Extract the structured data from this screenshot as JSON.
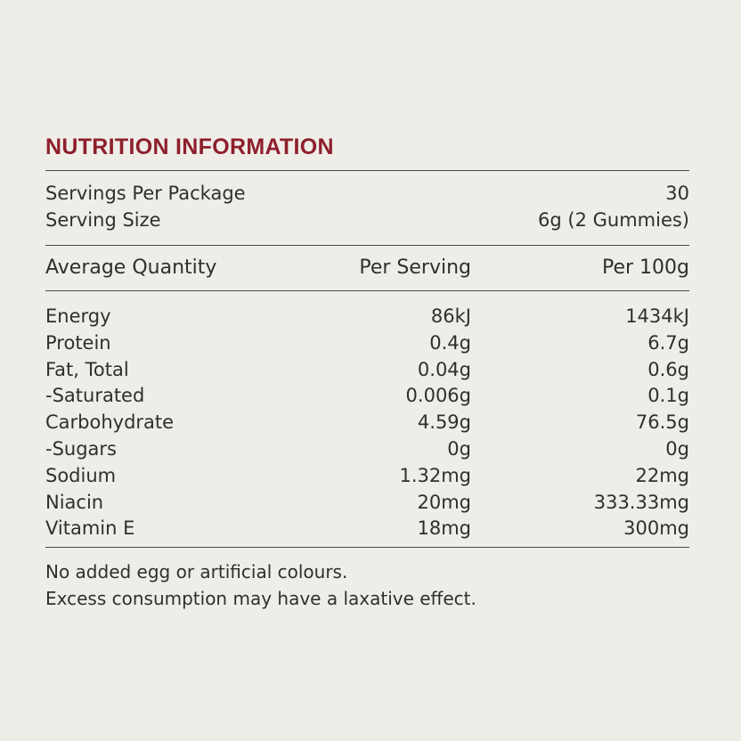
{
  "title": "NUTRITION INFORMATION",
  "servings": {
    "per_package_label": "Servings Per Package",
    "per_package_value": "30",
    "size_label": "Serving Size",
    "size_value": "6g (2 Gummies)"
  },
  "table": {
    "headers": [
      "Average Quantity",
      "Per Serving",
      "Per 100g"
    ],
    "rows": [
      [
        "Energy",
        "86kJ",
        "1434kJ"
      ],
      [
        "Protein",
        "0.4g",
        "6.7g"
      ],
      [
        "Fat, Total",
        "0.04g",
        "0.6g"
      ],
      [
        "-Saturated",
        "0.006g",
        "0.1g"
      ],
      [
        "Carbohydrate",
        "4.59g",
        "76.5g"
      ],
      [
        "-Sugars",
        "0g",
        "0g"
      ],
      [
        "Sodium",
        "1.32mg",
        "22mg"
      ],
      [
        "Niacin",
        "20mg",
        "333.33mg"
      ],
      [
        "Vitamin E",
        "18mg",
        "300mg"
      ]
    ]
  },
  "notes": [
    "No added egg or artificial colours.",
    "Excess consumption may have a laxative effect."
  ]
}
